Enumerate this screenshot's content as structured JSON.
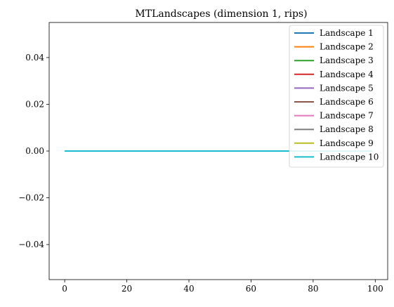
{
  "chart_data": {
    "type": "line",
    "title": "MTLandscapes (dimension 1, rips)",
    "xlabel": "",
    "ylabel": "",
    "xlim": [
      -5,
      104
    ],
    "ylim": [
      -0.055,
      0.055
    ],
    "x_ticks": [
      0,
      20,
      40,
      60,
      80,
      100
    ],
    "x_tick_labels": [
      "0",
      "20",
      "40",
      "60",
      "80",
      "100"
    ],
    "y_ticks": [
      -0.04,
      -0.02,
      0.0,
      0.02,
      0.04
    ],
    "y_tick_labels": [
      "−0.04",
      "−0.02",
      "0.00",
      "0.02",
      "0.04"
    ],
    "grid": false,
    "legend_position": "top-right",
    "x": [
      0,
      99
    ],
    "series": [
      {
        "name": "Landscape 1",
        "color": "#1f77b4",
        "values": [
          0,
          0
        ]
      },
      {
        "name": "Landscape 2",
        "color": "#ff7f0e",
        "values": [
          0,
          0
        ]
      },
      {
        "name": "Landscape 3",
        "color": "#2ca02c",
        "values": [
          0,
          0
        ]
      },
      {
        "name": "Landscape 4",
        "color": "#d62728",
        "values": [
          0,
          0
        ]
      },
      {
        "name": "Landscape 5",
        "color": "#9467bd",
        "values": [
          0,
          0
        ]
      },
      {
        "name": "Landscape 6",
        "color": "#8c564b",
        "values": [
          0,
          0
        ]
      },
      {
        "name": "Landscape 7",
        "color": "#e377c2",
        "values": [
          0,
          0
        ]
      },
      {
        "name": "Landscape 8",
        "color": "#7f7f7f",
        "values": [
          0,
          0
        ]
      },
      {
        "name": "Landscape 9",
        "color": "#bcbd22",
        "values": [
          0,
          0
        ]
      },
      {
        "name": "Landscape 10",
        "color": "#17becf",
        "values": [
          0,
          0
        ]
      }
    ]
  }
}
